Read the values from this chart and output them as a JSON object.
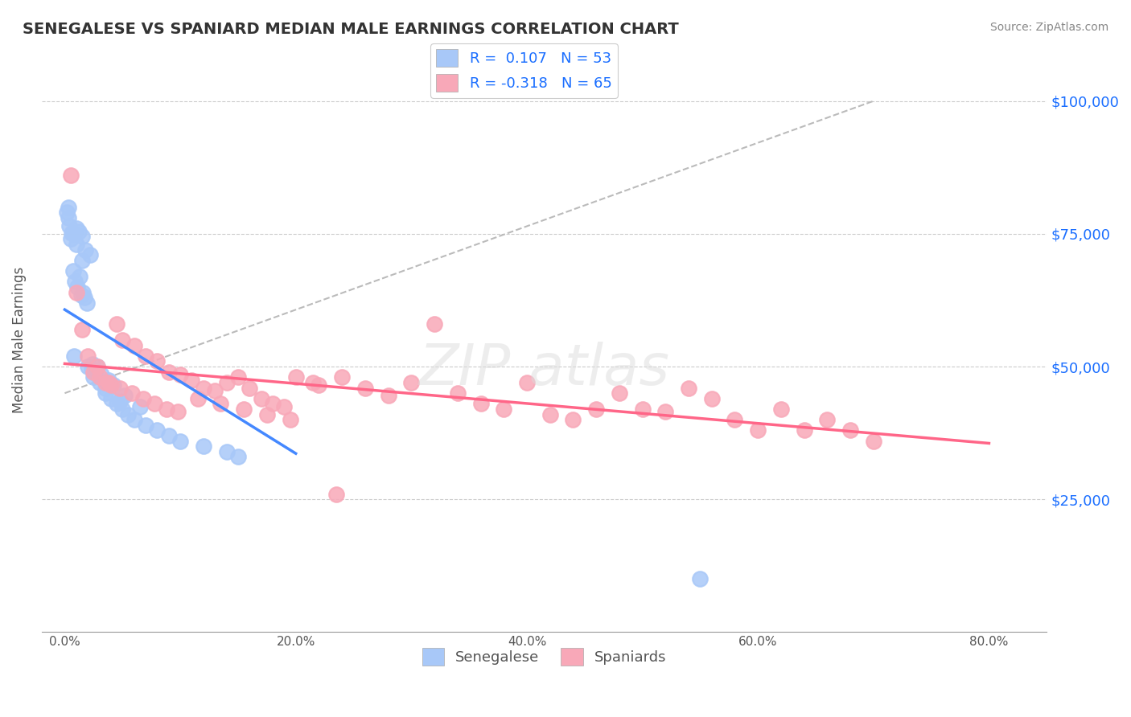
{
  "title": "SENEGALESE VS SPANIARD MEDIAN MALE EARNINGS CORRELATION CHART",
  "source": "Source: ZipAtlas.com",
  "xlabel_ticks": [
    "0.0%",
    "20.0%",
    "40.0%",
    "60.0%",
    "80.0%"
  ],
  "xlabel_vals": [
    0.0,
    20.0,
    40.0,
    60.0,
    80.0
  ],
  "ylabel_ticks": [
    "$25,000",
    "$50,000",
    "$75,000",
    "$100,000"
  ],
  "ylabel_vals": [
    25000,
    50000,
    75000,
    100000
  ],
  "ymin": 0,
  "ymax": 110000,
  "xmin": -2,
  "xmax": 85,
  "legend_blue_r": "0.107",
  "legend_blue_n": "53",
  "legend_pink_r": "-0.318",
  "legend_pink_n": "65",
  "blue_color": "#a8c8f8",
  "pink_color": "#f8a8b8",
  "blue_line_color": "#4488ff",
  "pink_line_color": "#ff6688",
  "gray_line_color": "#bbbbbb",
  "watermark": "ZIPatlas",
  "blue_scatter_x": [
    0.3,
    0.5,
    0.8,
    1.0,
    1.2,
    1.5,
    1.5,
    2.0,
    2.5,
    2.5,
    3.0,
    3.5,
    3.5,
    4.0,
    4.5,
    5.0,
    5.5,
    6.0,
    7.0,
    8.0,
    9.0,
    10.0,
    12.0,
    14.0,
    15.0,
    1.0,
    1.8,
    2.2,
    0.7,
    1.3,
    1.1,
    0.9,
    1.6,
    2.8,
    3.2,
    4.2,
    5.2,
    6.5,
    0.4,
    0.6,
    1.7,
    2.3,
    3.8,
    0.2,
    1.4,
    2.6,
    3.6,
    4.8,
    0.3,
    0.8,
    1.9,
    2.4,
    55.0
  ],
  "blue_scatter_y": [
    78000,
    74000,
    75000,
    76000,
    75500,
    74500,
    70000,
    50000,
    48000,
    49000,
    47000,
    46000,
    45000,
    44000,
    43000,
    42000,
    41000,
    40000,
    39000,
    38000,
    37000,
    36000,
    35000,
    34000,
    33000,
    73000,
    72000,
    71000,
    68000,
    67000,
    65000,
    66000,
    64000,
    50000,
    48500,
    46500,
    44500,
    42500,
    76500,
    75200,
    63000,
    49500,
    47500,
    79000,
    63500,
    49000,
    47000,
    43500,
    80000,
    52000,
    62000,
    50500,
    10000
  ],
  "pink_scatter_x": [
    0.5,
    1.0,
    1.5,
    2.0,
    2.5,
    3.0,
    3.5,
    4.0,
    4.5,
    5.0,
    6.0,
    7.0,
    8.0,
    9.0,
    10.0,
    11.0,
    12.0,
    13.0,
    14.0,
    15.0,
    16.0,
    17.0,
    18.0,
    19.0,
    20.0,
    22.0,
    24.0,
    26.0,
    28.0,
    30.0,
    32.0,
    34.0,
    36.0,
    38.0,
    40.0,
    42.0,
    44.0,
    46.0,
    48.0,
    50.0,
    52.0,
    54.0,
    56.0,
    58.0,
    60.0,
    62.0,
    64.0,
    66.0,
    68.0,
    70.0,
    2.8,
    3.8,
    4.8,
    5.8,
    6.8,
    7.8,
    8.8,
    9.8,
    11.5,
    13.5,
    15.5,
    17.5,
    19.5,
    21.5,
    23.5
  ],
  "pink_scatter_y": [
    86000,
    64000,
    57000,
    52000,
    49000,
    48000,
    47000,
    46500,
    58000,
    55000,
    54000,
    52000,
    51000,
    49000,
    48500,
    47500,
    46000,
    45500,
    47000,
    48000,
    46000,
    44000,
    43000,
    42500,
    48000,
    46500,
    48000,
    46000,
    44500,
    47000,
    58000,
    45000,
    43000,
    42000,
    47000,
    41000,
    40000,
    42000,
    45000,
    42000,
    41500,
    46000,
    44000,
    40000,
    38000,
    42000,
    38000,
    40000,
    38000,
    36000,
    50000,
    47000,
    46000,
    45000,
    44000,
    43000,
    42000,
    41500,
    44000,
    43000,
    42000,
    41000,
    40000,
    47000,
    26000
  ]
}
